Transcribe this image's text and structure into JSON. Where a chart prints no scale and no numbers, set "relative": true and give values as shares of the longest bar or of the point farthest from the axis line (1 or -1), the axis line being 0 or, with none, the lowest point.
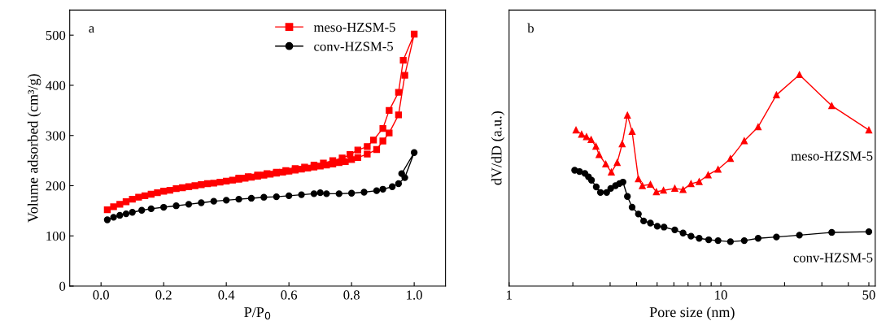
{
  "chart_data": [
    {
      "type": "line",
      "xlabel": "P/P$_{0}$",
      "ylabel": "Volume adsorbed (cm³/g)",
      "annotations": [
        "a"
      ],
      "xlim": [
        -0.1,
        1.1
      ],
      "xticks": [
        {
          "value": 0,
          "label": "0.0"
        },
        0.2,
        0.4,
        0.6,
        0.8,
        {
          "value": 1,
          "label": "1.0"
        }
      ],
      "ylim": [
        0,
        550
      ],
      "yticks": [
        0,
        100,
        200,
        300,
        400,
        500
      ],
      "grid": false,
      "legend": "top right",
      "series": [
        {
          "name": "meso-HZSM-5",
          "color": "#ff0000",
          "marker": "square",
          "x": [
            0.02,
            0.04,
            0.06,
            0.08,
            0.1,
            0.12,
            0.14,
            0.16,
            0.18,
            0.2,
            0.22,
            0.24,
            0.26,
            0.28,
            0.3,
            0.32,
            0.34,
            0.36,
            0.38,
            0.4,
            0.42,
            0.44,
            0.46,
            0.48,
            0.5,
            0.52,
            0.54,
            0.56,
            0.58,
            0.6,
            0.62,
            0.64,
            0.66,
            0.68,
            0.7,
            0.72,
            0.74,
            0.76,
            0.78,
            0.8,
            0.82,
            0.85,
            0.88,
            0.9,
            0.92,
            0.95,
            0.97,
            1.0,
            0.965,
            0.95,
            0.92,
            0.9,
            0.87,
            0.85,
            0.82,
            0.795,
            0.77,
            0.74,
            0.71,
            0.68,
            0.65,
            0.62,
            0.59,
            0.56,
            0.53,
            0.5,
            0.47,
            0.44
          ],
          "values": [
            152,
            158,
            163,
            168,
            173,
            177,
            180,
            183,
            186,
            189,
            191,
            194,
            196,
            198,
            200,
            202,
            204,
            205,
            207,
            209,
            211,
            213,
            215,
            217,
            219,
            221,
            223,
            225,
            227,
            229,
            231,
            233,
            235,
            237,
            239,
            241,
            243,
            246,
            248,
            252,
            256,
            263,
            272,
            289,
            305,
            341,
            420,
            502,
            450,
            386,
            350,
            314,
            291,
            278,
            271,
            262,
            255,
            250,
            245,
            241,
            237,
            234,
            230,
            227,
            224,
            221,
            218,
            215
          ]
        },
        {
          "name": "conv-HZSM-5",
          "color": "#000000",
          "marker": "circle",
          "x": [
            0.02,
            0.04,
            0.06,
            0.08,
            0.1,
            0.13,
            0.16,
            0.2,
            0.24,
            0.28,
            0.32,
            0.36,
            0.4,
            0.44,
            0.48,
            0.52,
            0.56,
            0.6,
            0.64,
            0.68,
            0.7,
            0.72,
            0.76,
            0.8,
            0.84,
            0.88,
            0.9,
            0.93,
            0.95,
            0.97,
            1.0,
            0.96
          ],
          "values": [
            132,
            137,
            141,
            144,
            147,
            151,
            154,
            157,
            160,
            163,
            166,
            169,
            171,
            173,
            175,
            177,
            178,
            180,
            182,
            184,
            186,
            184,
            184,
            185,
            187,
            190,
            193,
            198,
            204,
            216,
            266,
            224
          ]
        }
      ]
    },
    {
      "type": "line",
      "xlabel": "Pore size (nm)",
      "ylabel": "dV/dD (a.u.)",
      "annotations": [
        "b"
      ],
      "log": "x",
      "relative": true,
      "xlim": [
        1,
        53.6
      ],
      "xticks": [
        1,
        {
          "value": 2,
          "label": null
        },
        {
          "value": 3,
          "label": null
        },
        {
          "value": 4,
          "label": null
        },
        {
          "value": 5,
          "label": null
        },
        {
          "value": 6,
          "label": null
        },
        {
          "value": 7,
          "label": null
        },
        {
          "value": 8,
          "label": null
        },
        {
          "value": 9,
          "label": null
        },
        10,
        {
          "value": 20,
          "label": null
        },
        {
          "value": 30,
          "label": null
        },
        {
          "value": 40,
          "label": null
        },
        50
      ],
      "grid": false,
      "legend": false,
      "series": [
        {
          "name": "meso-HZSM-5",
          "color": "#ff0000",
          "marker": "triangle",
          "x": [
            2.07,
            2.2,
            2.32,
            2.44,
            2.57,
            2.66,
            2.86,
            3.04,
            3.24,
            3.42,
            3.62,
            3.81,
            4.08,
            4.26,
            4.65,
            4.96,
            5.36,
            6.06,
            6.63,
            7.23,
            7.9,
            8.71,
            9.7,
            11.1,
            12.9,
            15.0,
            18.3,
            23.5,
            33.4,
            50
          ],
          "values": [
            0.738,
            0.718,
            0.706,
            0.693,
            0.661,
            0.622,
            0.577,
            0.539,
            0.584,
            0.673,
            0.808,
            0.731,
            0.507,
            0.475,
            0.481,
            0.446,
            0.453,
            0.462,
            0.456,
            0.484,
            0.494,
            0.526,
            0.552,
            0.603,
            0.687,
            0.753,
            0.904,
            1,
            0.853,
            0.738
          ]
        },
        {
          "name": "conv-HZSM-5",
          "color": "#000000",
          "marker": "circle",
          "x": [
            2.04,
            2.15,
            2.28,
            2.37,
            2.45,
            2.58,
            2.7,
            2.89,
            3.02,
            3.18,
            3.32,
            3.45,
            3.62,
            3.81,
            4.08,
            4.32,
            4.65,
            5.01,
            5.39,
            6.06,
            6.63,
            7.23,
            7.9,
            8.76,
            9.7,
            11.1,
            12.9,
            15.0,
            18.3,
            23.5,
            33.4,
            50
          ],
          "values": [
            0.548,
            0.542,
            0.533,
            0.517,
            0.501,
            0.469,
            0.443,
            0.443,
            0.462,
            0.475,
            0.485,
            0.492,
            0.424,
            0.373,
            0.341,
            0.308,
            0.298,
            0.283,
            0.279,
            0.266,
            0.251,
            0.236,
            0.226,
            0.219,
            0.215,
            0.21,
            0.215,
            0.226,
            0.232,
            0.241,
            0.254,
            0.257
          ]
        }
      ]
    }
  ]
}
